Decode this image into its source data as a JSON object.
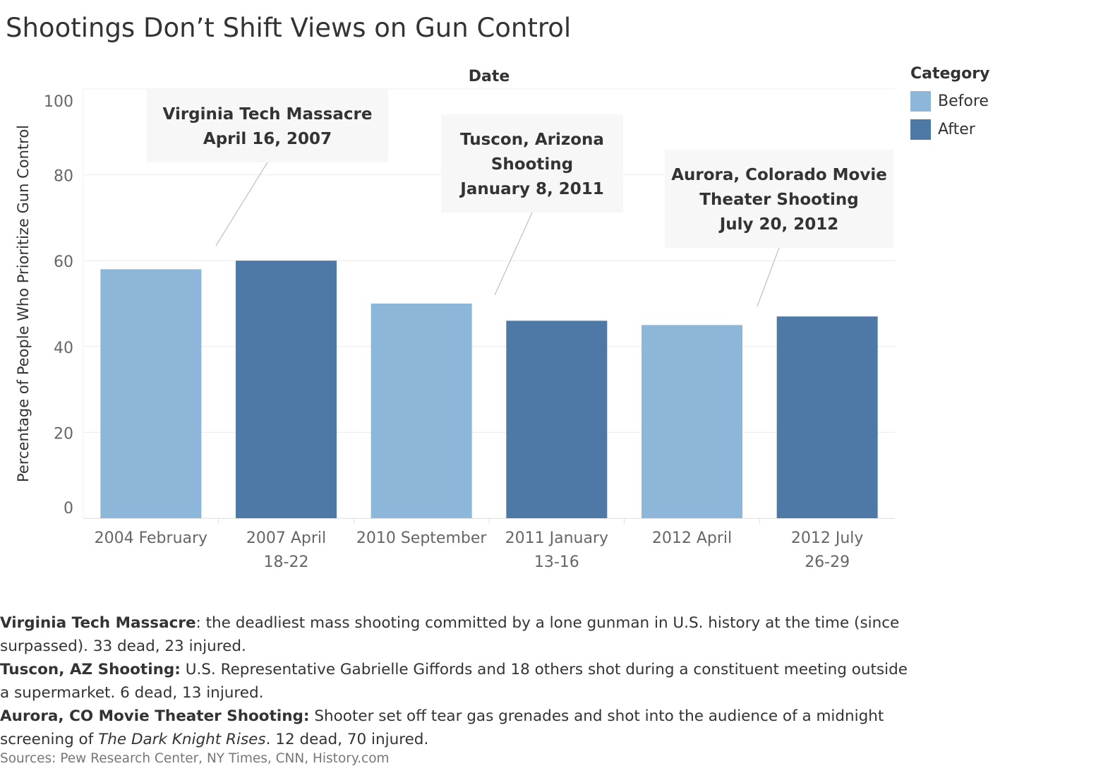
{
  "title": "Shootings Don’t Shift Views on Gun Control",
  "chart_data": {
    "type": "bar",
    "title": "Shootings Don’t Shift Views on Gun Control",
    "xlabel": "Date",
    "ylabel": "Percentage of People Who Prioritize Gun Control",
    "ylim": [
      0,
      100
    ],
    "yticks": [
      0,
      20,
      40,
      60,
      80,
      100
    ],
    "grid": true,
    "legend_position": "top-right",
    "categories": [
      [
        "2004 February"
      ],
      [
        "2007 April",
        "18-22"
      ],
      [
        "2010 September"
      ],
      [
        "2011 January",
        "13-16"
      ],
      [
        "2012 April"
      ],
      [
        "2012 July",
        "26-29"
      ]
    ],
    "values": [
      58,
      60,
      50,
      46,
      45,
      47
    ],
    "category_group": [
      "Before",
      "After",
      "Before",
      "After",
      "Before",
      "After"
    ],
    "legend": {
      "title": "Category",
      "entries": [
        {
          "name": "Before",
          "color": "#8db7d9"
        },
        {
          "name": "After",
          "color": "#4e79a7"
        }
      ]
    },
    "annotations": [
      {
        "lines": [
          "Virginia Tech Massacre",
          "April 16, 2007"
        ],
        "target_index": 1
      },
      {
        "lines": [
          "Tuscon, Arizona",
          "Shooting",
          "January 8, 2011"
        ],
        "target_index": 3
      },
      {
        "lines": [
          "Aurora, Colorado Movie",
          "Theater Shooting",
          "July 20, 2012"
        ],
        "target_index": 5
      }
    ]
  },
  "notes": [
    {
      "label": "Virginia Tech Massacre",
      "text": ": the deadliest mass shooting committed by a lone gunman in U.S. history at the time (since surpassed).  33 dead, 23 injured."
    },
    {
      "label": "Tuscon, AZ Shooting:",
      "text": " U.S. Representative Gabrielle Giffords and 18 others shot during a constituent meeting outside a supermarket.  6 dead, 13 injured."
    },
    {
      "label": "Aurora, CO Movie Theater Shooting:",
      "text": " Shooter set off tear gas grenades and shot into the audience of a midnight screening of ",
      "italic": "The Dark Knight Rises",
      "tail": ".  12 dead, 70 injured."
    }
  ],
  "sources": "Sources: Pew Research Center, NY Times, CNN, History.com"
}
